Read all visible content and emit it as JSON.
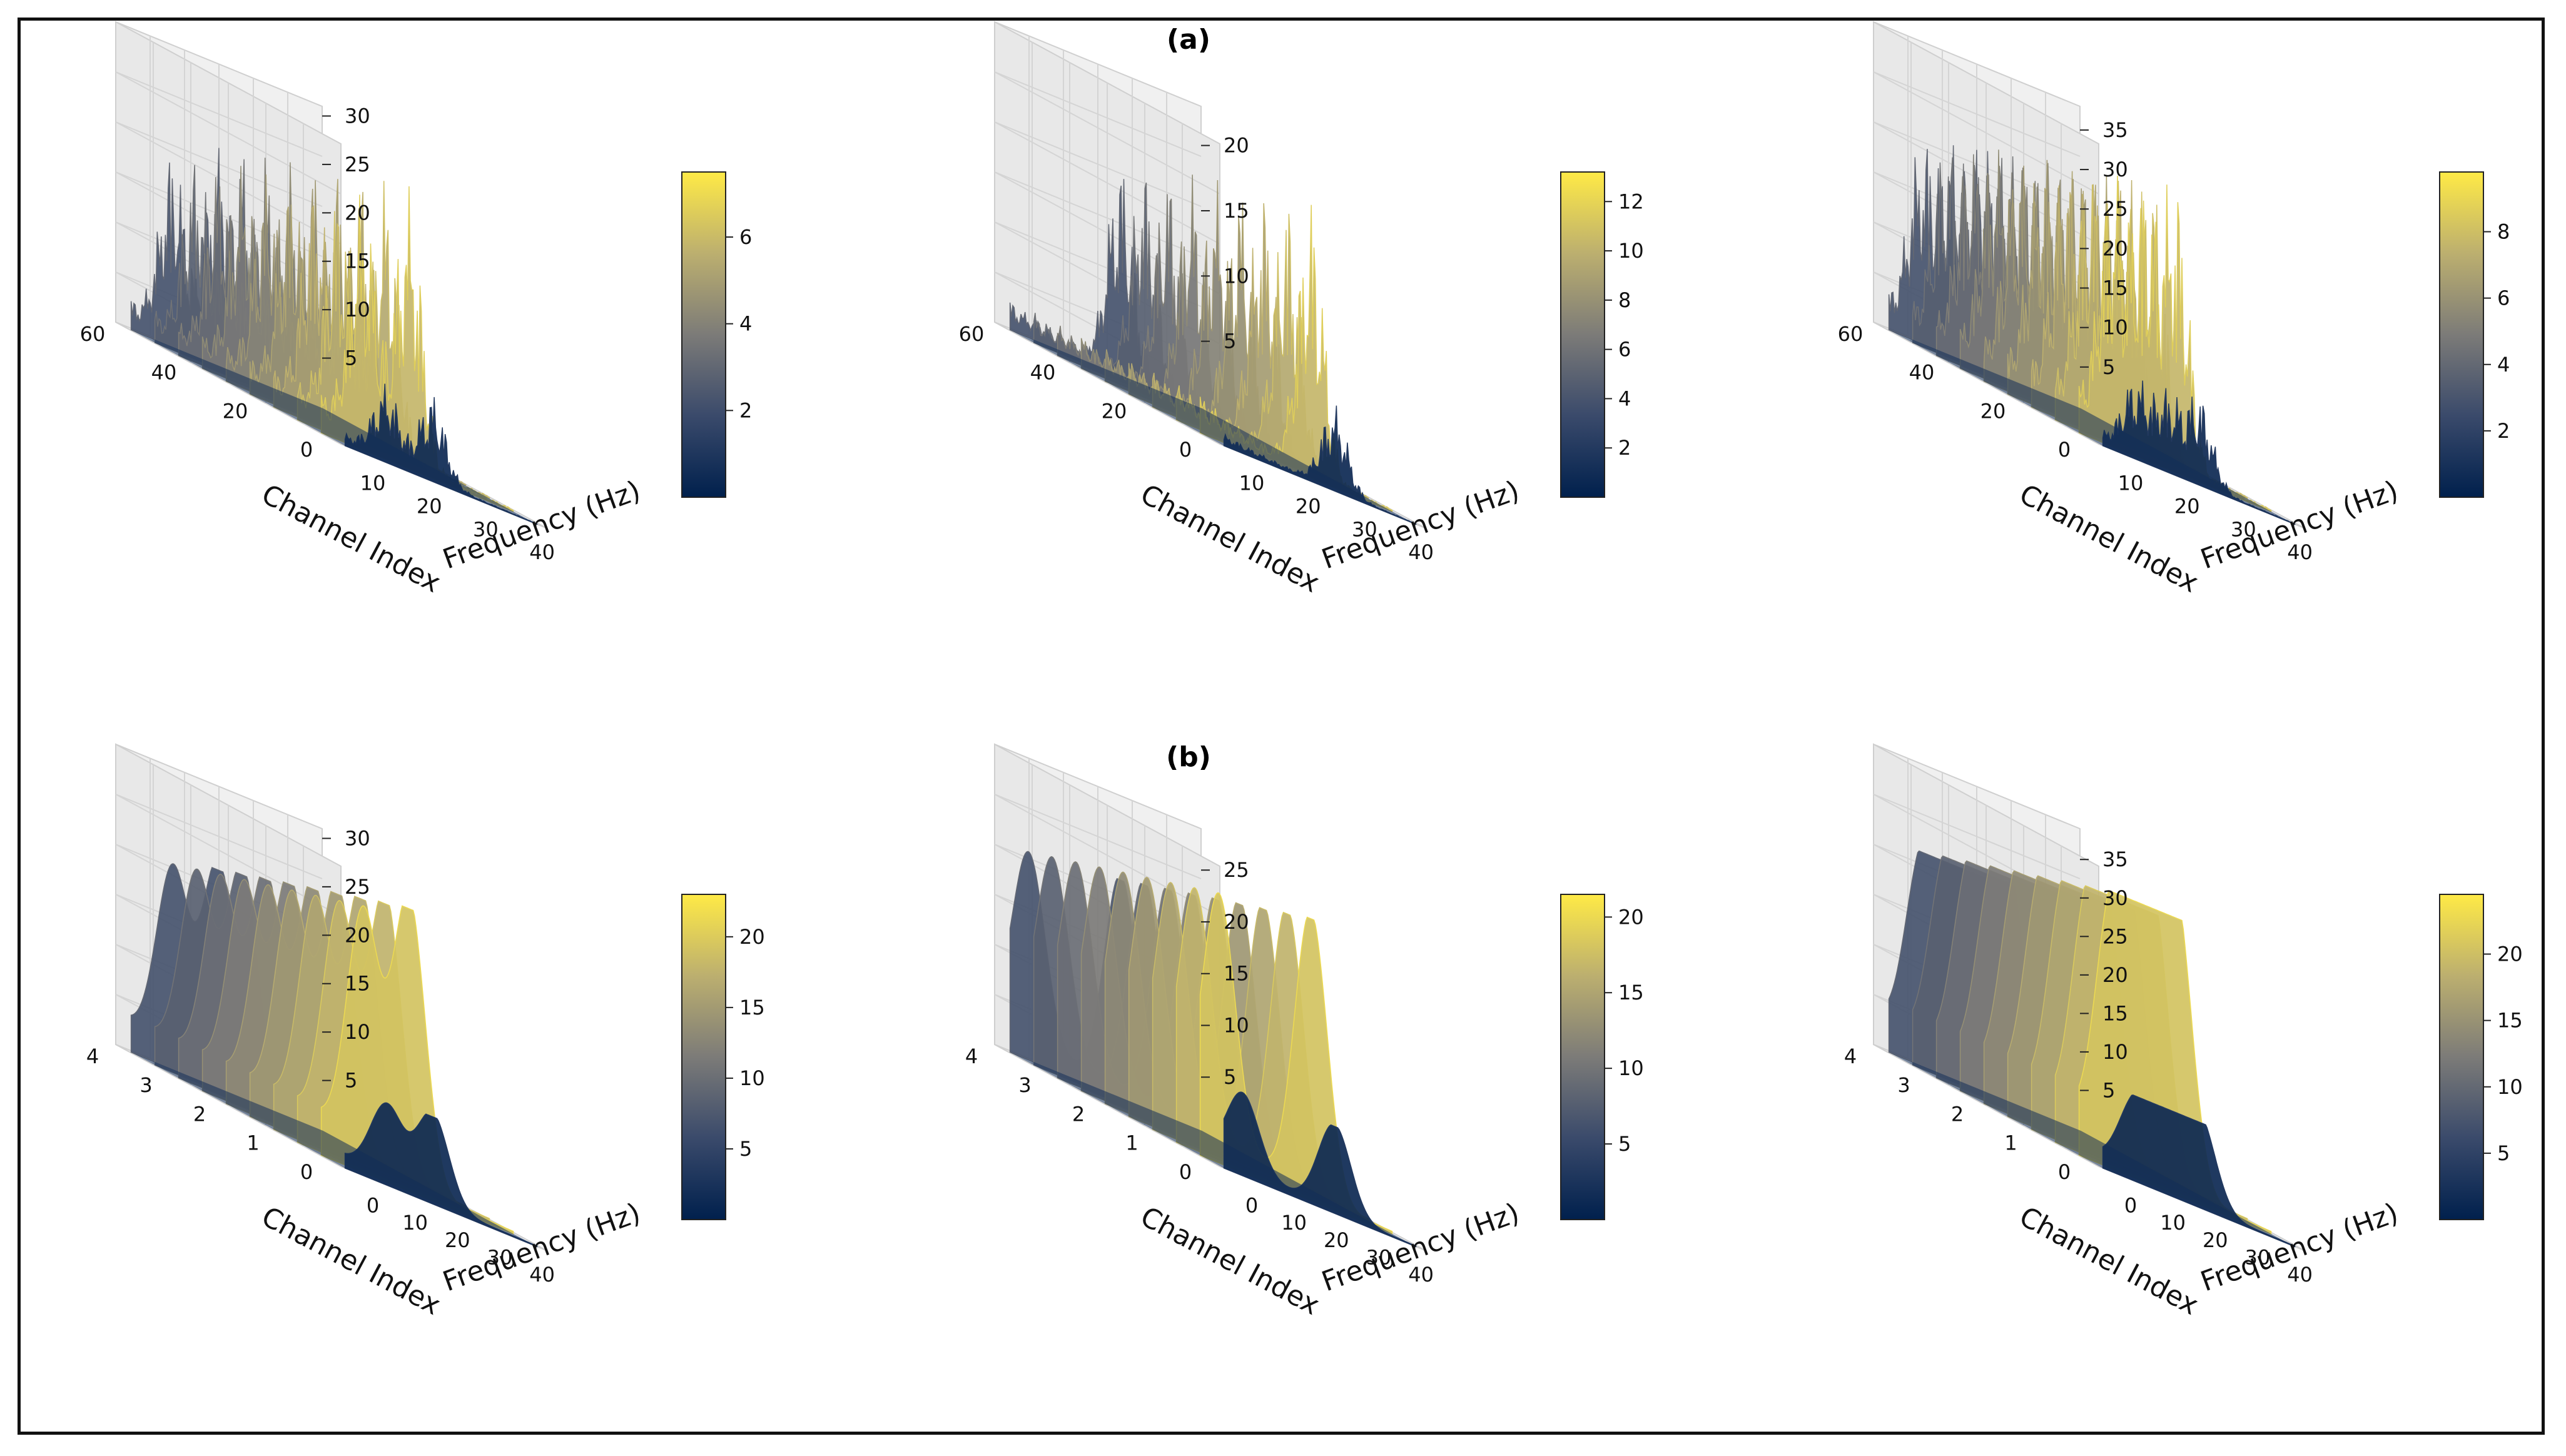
{
  "figure": {
    "row_labels": [
      "(a)",
      "(b)"
    ]
  },
  "chart_data": [
    {
      "type": "surface3d",
      "row": "(a)",
      "panel": 1,
      "xlabel": "Channel Index",
      "ylabel": "Frequency (Hz)",
      "x_ticks": [
        "0",
        "20",
        "40",
        "60"
      ],
      "y_ticks": [
        "10",
        "20",
        "30",
        "40"
      ],
      "z_ticks": [
        "5",
        "10",
        "15",
        "20",
        "25",
        "30"
      ],
      "zlim": [
        0,
        31
      ],
      "colorbar_ticks": [
        "2",
        "4",
        "6"
      ],
      "colorbar_range": [
        0,
        7.5
      ],
      "colormap": "cividis",
      "peak_z": 30,
      "peak_freqs_hz": [
        10,
        20
      ],
      "style": "spiky"
    },
    {
      "type": "surface3d",
      "row": "(a)",
      "panel": 2,
      "xlabel": "Channel Index",
      "ylabel": "Frequency (Hz)",
      "x_ticks": [
        "0",
        "20",
        "40",
        "60"
      ],
      "y_ticks": [
        "10",
        "20",
        "30",
        "40"
      ],
      "z_ticks": [
        "5",
        "10",
        "15",
        "20"
      ],
      "zlim": [
        0,
        23
      ],
      "colorbar_ticks": [
        "2",
        "4",
        "6",
        "8",
        "10",
        "12"
      ],
      "colorbar_range": [
        0,
        13.2
      ],
      "colormap": "cividis",
      "peak_z": 22,
      "peak_freqs_hz": [
        25
      ],
      "style": "spiky"
    },
    {
      "type": "surface3d",
      "row": "(a)",
      "panel": 3,
      "xlabel": "Channel Index",
      "ylabel": "Frequency (Hz)",
      "x_ticks": [
        "0",
        "20",
        "40",
        "60"
      ],
      "y_ticks": [
        "10",
        "20",
        "30",
        "40"
      ],
      "z_ticks": [
        "5",
        "10",
        "15",
        "20",
        "25",
        "30",
        "35"
      ],
      "zlim": [
        0,
        38
      ],
      "colorbar_ticks": [
        "2",
        "4",
        "6",
        "8"
      ],
      "colorbar_range": [
        0,
        9.8
      ],
      "colormap": "cividis",
      "peak_z": 37,
      "peak_freqs_hz": [
        8,
        15,
        22
      ],
      "style": "spiky"
    },
    {
      "type": "surface3d",
      "row": "(b)",
      "panel": 1,
      "xlabel": "Channel Index",
      "ylabel": "Frequency (Hz)",
      "x_ticks": [
        "0",
        "1",
        "2",
        "3",
        "4"
      ],
      "y_ticks": [
        "0",
        "10",
        "20",
        "30",
        "40"
      ],
      "z_ticks": [
        "5",
        "10",
        "15",
        "20",
        "25",
        "30"
      ],
      "zlim": [
        0,
        31
      ],
      "colorbar_ticks": [
        "5",
        "10",
        "15",
        "20"
      ],
      "colorbar_range": [
        0,
        23
      ],
      "colormap": "cividis",
      "peak_z": 30,
      "peak_freqs_hz": [
        10,
        20
      ],
      "style": "smooth"
    },
    {
      "type": "surface3d",
      "row": "(b)",
      "panel": 2,
      "xlabel": "Channel Index",
      "ylabel": "Frequency (Hz)",
      "x_ticks": [
        "0",
        "1",
        "2",
        "3",
        "4"
      ],
      "y_ticks": [
        "0",
        "10",
        "20",
        "30",
        "40"
      ],
      "z_ticks": [
        "5",
        "10",
        "15",
        "20",
        "25"
      ],
      "zlim": [
        0,
        29
      ],
      "colorbar_ticks": [
        "5",
        "10",
        "15",
        "20"
      ],
      "colorbar_range": [
        0,
        21.5
      ],
      "colormap": "cividis",
      "peak_z": 28,
      "peak_freqs_hz": [
        5,
        25
      ],
      "style": "smooth"
    },
    {
      "type": "surface3d",
      "row": "(b)",
      "panel": 3,
      "xlabel": "Channel Index",
      "ylabel": "Frequency (Hz)",
      "x_ticks": [
        "0",
        "1",
        "2",
        "3",
        "4"
      ],
      "y_ticks": [
        "0",
        "10",
        "20",
        "30",
        "40"
      ],
      "z_ticks": [
        "5",
        "10",
        "15",
        "20",
        "25",
        "30",
        "35"
      ],
      "zlim": [
        0,
        39
      ],
      "colorbar_ticks": [
        "5",
        "10",
        "15",
        "20"
      ],
      "colorbar_range": [
        0,
        24.5
      ],
      "colormap": "cividis",
      "peak_z": 37,
      "peak_freqs_hz": [
        8,
        15,
        22
      ],
      "style": "smooth"
    }
  ]
}
